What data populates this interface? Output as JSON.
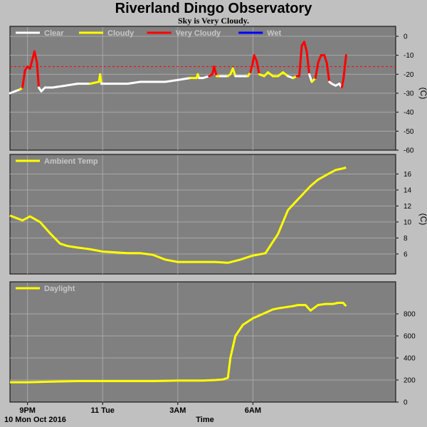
{
  "page": {
    "title": "Riverland Dingo Observatory",
    "subtitle": "Sky is Very Cloudy."
  },
  "chart_data": [
    {
      "type": "line",
      "name": "sky-temperature",
      "x_unit": "hours",
      "x_range": [
        -3.7,
        11.7
      ],
      "ylim": [
        -60,
        0
      ],
      "y_ticks": [
        0,
        -10,
        -20,
        -30,
        -40,
        -50,
        -60
      ],
      "ylabel": "(C)",
      "grid": true,
      "legend_position": "top-left",
      "threshold_line": -16,
      "threshold_color": "#ff0000",
      "series": [
        {
          "name": "Clear",
          "color": "#ffffff"
        },
        {
          "name": "Cloudy",
          "color": "#ffff00"
        },
        {
          "name": "Very Cloudy",
          "color": "#ff0000"
        },
        {
          "name": "Wet",
          "color": "#0000ff"
        }
      ],
      "points": [
        [
          -3.7,
          -30,
          "Clear"
        ],
        [
          -3.5,
          -29,
          "Clear"
        ],
        [
          -3.3,
          -28,
          "Clear"
        ],
        [
          -3.2,
          -27,
          "Cloudy"
        ],
        [
          -3.1,
          -18,
          "Very Cloudy"
        ],
        [
          -3.0,
          -16,
          "Very Cloudy"
        ],
        [
          -2.9,
          -17,
          "Very Cloudy"
        ],
        [
          -2.8,
          -12,
          "Very Cloudy"
        ],
        [
          -2.72,
          -8,
          "Very Cloudy"
        ],
        [
          -2.62,
          -14,
          "Very Cloudy"
        ],
        [
          -2.55,
          -27,
          "Very Cloudy"
        ],
        [
          -2.45,
          -29,
          "Clear"
        ],
        [
          -2.3,
          -27,
          "Clear"
        ],
        [
          -2.0,
          -27,
          "Clear"
        ],
        [
          -1.5,
          -26,
          "Clear"
        ],
        [
          -1.0,
          -25,
          "Clear"
        ],
        [
          -0.5,
          -25,
          "Clear"
        ],
        [
          -0.15,
          -24,
          "Cloudy"
        ],
        [
          -0.1,
          -20,
          "Cloudy"
        ],
        [
          -0.05,
          -25,
          "Cloudy"
        ],
        [
          0.0,
          -25,
          "Clear"
        ],
        [
          0.5,
          -25,
          "Clear"
        ],
        [
          1.0,
          -25,
          "Clear"
        ],
        [
          1.5,
          -24,
          "Clear"
        ],
        [
          2.0,
          -24,
          "Clear"
        ],
        [
          2.5,
          -24,
          "Clear"
        ],
        [
          3.0,
          -23,
          "Clear"
        ],
        [
          3.5,
          -22,
          "Clear"
        ],
        [
          3.75,
          -22,
          "Cloudy"
        ],
        [
          3.8,
          -20,
          "Cloudy"
        ],
        [
          3.85,
          -22,
          "Cloudy"
        ],
        [
          4.0,
          -22,
          "Clear"
        ],
        [
          4.25,
          -21,
          "Clear"
        ],
        [
          4.38,
          -20,
          "Very Cloudy"
        ],
        [
          4.45,
          -16,
          "Very Cloudy"
        ],
        [
          4.55,
          -21,
          "Very Cloudy"
        ],
        [
          4.7,
          -21,
          "Cloudy"
        ],
        [
          5.0,
          -21,
          "Clear"
        ],
        [
          5.1,
          -20,
          "Cloudy"
        ],
        [
          5.2,
          -17,
          "Cloudy"
        ],
        [
          5.3,
          -21,
          "Cloudy"
        ],
        [
          5.5,
          -21,
          "Clear"
        ],
        [
          5.8,
          -21,
          "Clear"
        ],
        [
          5.9,
          -19,
          "Cloudy"
        ],
        [
          5.98,
          -15,
          "Very Cloudy"
        ],
        [
          6.05,
          -10,
          "Very Cloudy"
        ],
        [
          6.15,
          -13,
          "Very Cloudy"
        ],
        [
          6.25,
          -20,
          "Very Cloudy"
        ],
        [
          6.45,
          -21,
          "Cloudy"
        ],
        [
          6.6,
          -19,
          "Cloudy"
        ],
        [
          6.8,
          -21,
          "Cloudy"
        ],
        [
          7.0,
          -21,
          "Cloudy"
        ],
        [
          7.2,
          -19,
          "Cloudy"
        ],
        [
          7.4,
          -21,
          "Cloudy"
        ],
        [
          7.6,
          -22,
          "Clear"
        ],
        [
          7.75,
          -21,
          "Cloudy"
        ],
        [
          7.85,
          -21,
          "Very Cloudy"
        ],
        [
          7.95,
          -5,
          "Very Cloudy"
        ],
        [
          8.05,
          -3,
          "Very Cloudy"
        ],
        [
          8.15,
          -8,
          "Very Cloudy"
        ],
        [
          8.25,
          -20,
          "Very Cloudy"
        ],
        [
          8.35,
          -24,
          "Clear"
        ],
        [
          8.5,
          -22,
          "Cloudy"
        ],
        [
          8.6,
          -14,
          "Very Cloudy"
        ],
        [
          8.72,
          -10,
          "Very Cloudy"
        ],
        [
          8.85,
          -10,
          "Very Cloudy"
        ],
        [
          8.95,
          -14,
          "Very Cloudy"
        ],
        [
          9.05,
          -24,
          "Very Cloudy"
        ],
        [
          9.15,
          -25,
          "Clear"
        ],
        [
          9.3,
          -26,
          "Clear"
        ],
        [
          9.45,
          -25,
          "Clear"
        ],
        [
          9.55,
          -27,
          "Clear"
        ],
        [
          9.62,
          -22,
          "Very Cloudy"
        ],
        [
          9.72,
          -10,
          "Very Cloudy"
        ]
      ]
    },
    {
      "type": "line",
      "name": "ambient-temperature",
      "x_unit": "hours",
      "x_range": [
        -3.7,
        11.7
      ],
      "ylim": [
        3.5,
        17.2
      ],
      "y_ticks": [
        6,
        8,
        10,
        12,
        14,
        16
      ],
      "ylabel": "(C)",
      "grid": true,
      "legend_position": "top-left",
      "series": [
        {
          "name": "Ambient Temp",
          "color": "#ffff00",
          "x": [
            -3.7,
            -3.2,
            -2.9,
            -2.5,
            -2.1,
            -1.7,
            -1.4,
            -1.0,
            -0.5,
            0.0,
            0.5,
            1.0,
            1.5,
            2.0,
            2.5,
            3.0,
            3.5,
            4.0,
            4.5,
            5.0,
            5.5,
            6.0,
            6.5,
            7.0,
            7.4,
            7.7,
            8.0,
            8.3,
            8.6,
            9.0,
            9.3,
            9.6,
            9.72
          ],
          "y": [
            10.8,
            10.2,
            10.7,
            10.0,
            8.6,
            7.3,
            7.0,
            6.8,
            6.6,
            6.3,
            6.2,
            6.1,
            6.1,
            5.9,
            5.3,
            5.0,
            5.0,
            5.0,
            5.0,
            4.9,
            5.3,
            5.8,
            6.1,
            8.5,
            11.5,
            12.5,
            13.5,
            14.5,
            15.3,
            16.0,
            16.5,
            16.7,
            16.8
          ]
        }
      ]
    },
    {
      "type": "line",
      "name": "daylight",
      "x_unit": "hours",
      "x_range": [
        -3.7,
        11.7
      ],
      "ylim": [
        0,
        1000
      ],
      "y_ticks": [
        0,
        200,
        400,
        600,
        800
      ],
      "grid": true,
      "legend_position": "top-left",
      "series": [
        {
          "name": "Daylight",
          "color": "#ffff00",
          "x": [
            -3.7,
            -3.0,
            -2.0,
            -1.0,
            0.0,
            1.0,
            2.0,
            3.0,
            4.0,
            4.5,
            4.8,
            5.0,
            5.1,
            5.3,
            5.6,
            6.0,
            6.3,
            6.6,
            6.8,
            7.0,
            7.3,
            7.6,
            7.8,
            8.1,
            8.3,
            8.6,
            8.9,
            9.2,
            9.4,
            9.6,
            9.72
          ],
          "y": [
            180,
            180,
            185,
            190,
            190,
            190,
            190,
            195,
            195,
            200,
            205,
            220,
            400,
            600,
            700,
            760,
            790,
            820,
            840,
            850,
            860,
            870,
            880,
            880,
            830,
            880,
            890,
            890,
            900,
            900,
            870
          ]
        }
      ]
    }
  ],
  "x_axis": {
    "ticks": [
      {
        "value": -3.0,
        "label": "9PM"
      },
      {
        "value": 0.0,
        "label": "11 Tue"
      },
      {
        "value": 3.0,
        "label": "3AM"
      },
      {
        "value": 6.0,
        "label": "6AM"
      }
    ],
    "date_label": "10 Mon Oct 2016",
    "title": "Time"
  }
}
